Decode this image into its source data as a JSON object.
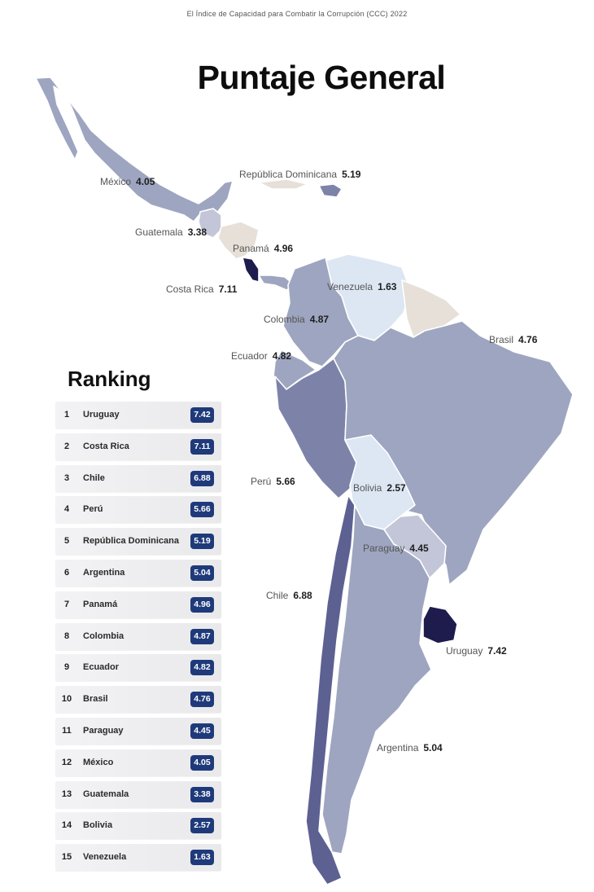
{
  "header": {
    "subtitle": "El Índice de Capacidad para Combatir la Corrupción (CCC) 2022",
    "title": "Puntaje General"
  },
  "colors": {
    "very_low": "#dde6f3",
    "low": "#c3c6d8",
    "mid": "#9ea5c0",
    "mid_high": "#7d83a8",
    "high": "#5c6192",
    "very_high": "#1e1b4d",
    "no_data": "#e6e0d9",
    "badge": "#1f3a7a"
  },
  "map": {
    "labels": [
      {
        "id": "mexico",
        "name": "México",
        "score": "4.05"
      },
      {
        "id": "dominicana",
        "name": "República Dominicana",
        "score": "5.19"
      },
      {
        "id": "guatemala",
        "name": "Guatemala",
        "score": "3.38"
      },
      {
        "id": "panama",
        "name": "Panamá",
        "score": "4.96"
      },
      {
        "id": "costa-rica",
        "name": "Costa Rica",
        "score": "7.11"
      },
      {
        "id": "venezuela",
        "name": "Venezuela",
        "score": "1.63"
      },
      {
        "id": "colombia",
        "name": "Colombia",
        "score": "4.87"
      },
      {
        "id": "ecuador",
        "name": "Ecuador",
        "score": "4.82"
      },
      {
        "id": "brasil",
        "name": "Brasil",
        "score": "4.76"
      },
      {
        "id": "peru",
        "name": "Perú",
        "score": "5.66"
      },
      {
        "id": "bolivia",
        "name": "Bolivia",
        "score": "2.57"
      },
      {
        "id": "paraguay",
        "name": "Paraguay",
        "score": "4.45"
      },
      {
        "id": "chile",
        "name": "Chile",
        "score": "6.88"
      },
      {
        "id": "uruguay",
        "name": "Uruguay",
        "score": "7.42"
      },
      {
        "id": "argentina",
        "name": "Argentina",
        "score": "5.04"
      }
    ]
  },
  "ranking": {
    "title": "Ranking",
    "rows": [
      {
        "rank": "1",
        "country": "Uruguay",
        "score": "7.42"
      },
      {
        "rank": "2",
        "country": "Costa Rica",
        "score": "7.11"
      },
      {
        "rank": "3",
        "country": "Chile",
        "score": "6.88"
      },
      {
        "rank": "4",
        "country": "Perú",
        "score": "5.66"
      },
      {
        "rank": "5",
        "country": "República Dominicana",
        "score": "5.19"
      },
      {
        "rank": "6",
        "country": "Argentina",
        "score": "5.04"
      },
      {
        "rank": "7",
        "country": "Panamá",
        "score": "4.96"
      },
      {
        "rank": "8",
        "country": "Colombia",
        "score": "4.87"
      },
      {
        "rank": "9",
        "country": "Ecuador",
        "score": "4.82"
      },
      {
        "rank": "10",
        "country": "Brasil",
        "score": "4.76"
      },
      {
        "rank": "11",
        "country": "Paraguay",
        "score": "4.45"
      },
      {
        "rank": "12",
        "country": "México",
        "score": "4.05"
      },
      {
        "rank": "13",
        "country": "Guatemala",
        "score": "3.38"
      },
      {
        "rank": "14",
        "country": "Bolivia",
        "score": "2.57"
      },
      {
        "rank": "15",
        "country": "Venezuela",
        "score": "1.63"
      }
    ]
  }
}
